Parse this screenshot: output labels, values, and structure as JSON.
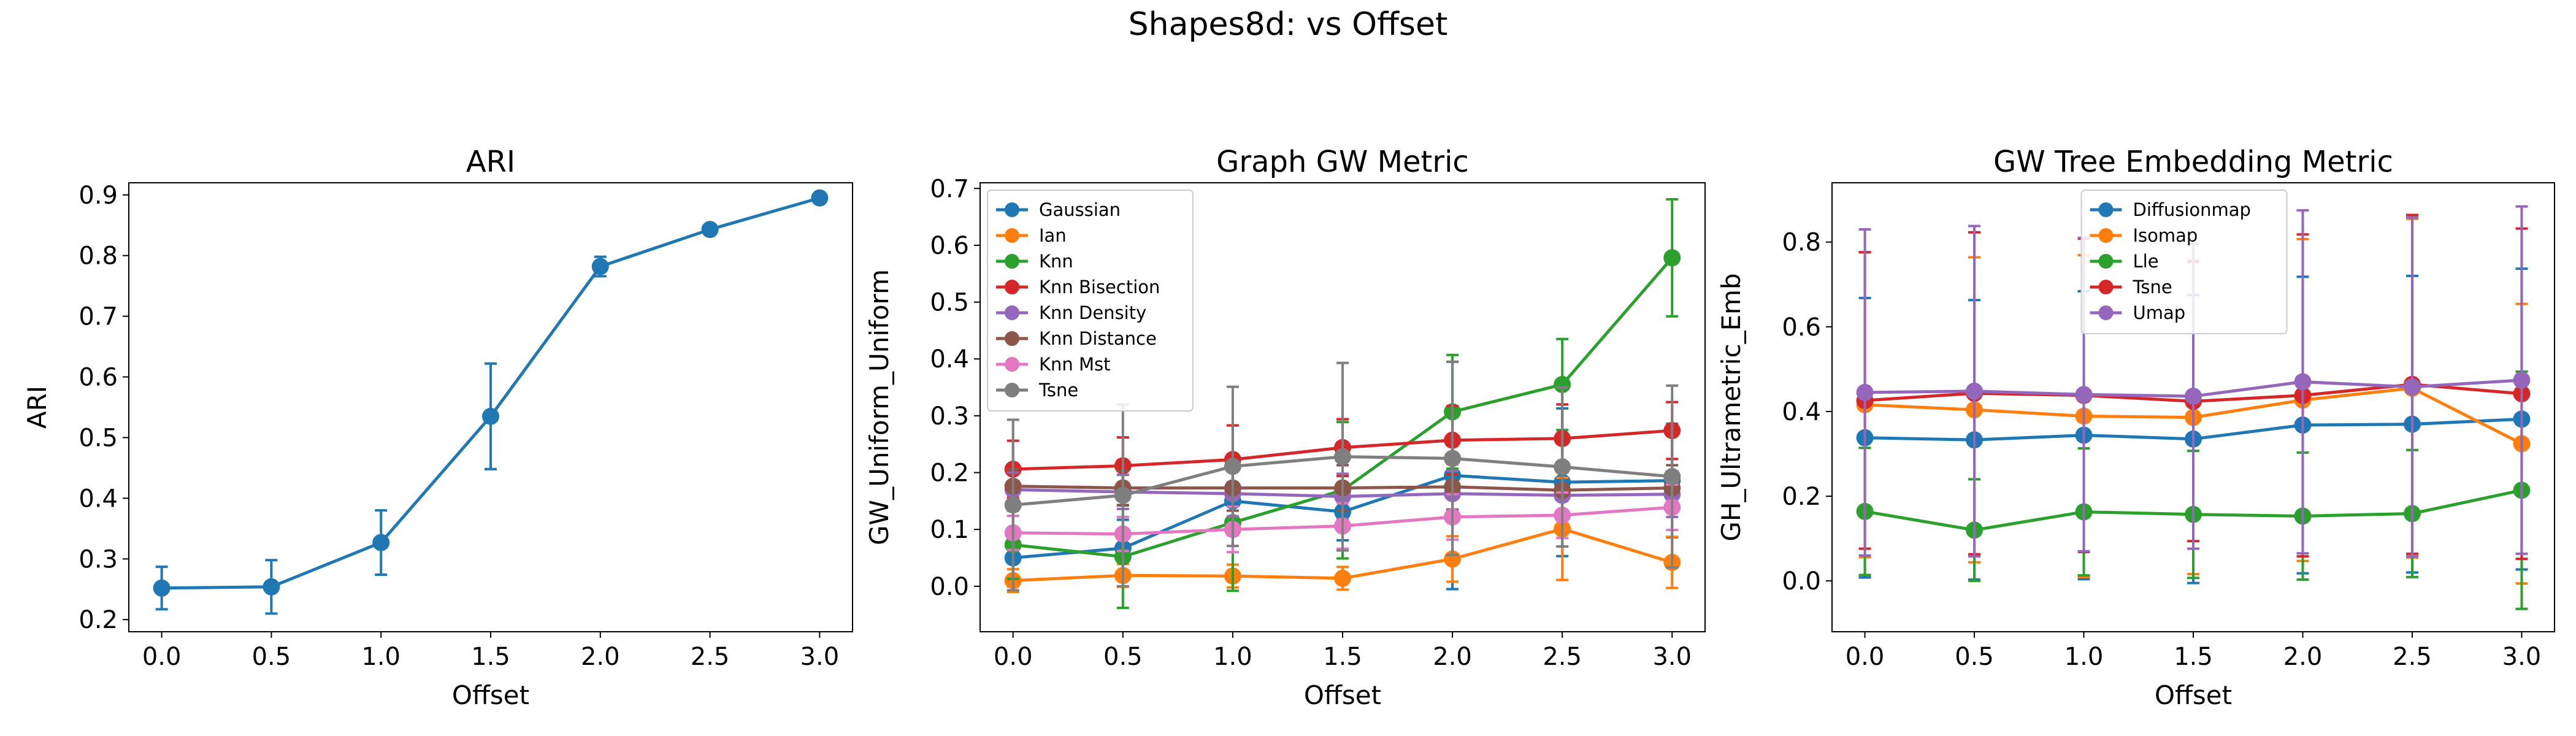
{
  "suptitle": "Shapes8d: vs Offset",
  "chart_data": [
    {
      "type": "line",
      "title": "ARI",
      "xlabel": "Offset",
      "ylabel": "ARI",
      "x": [
        0.0,
        0.5,
        1.0,
        1.5,
        2.0,
        2.5,
        3.0
      ],
      "xticks": [
        "0.0",
        "0.5",
        "1.0",
        "1.5",
        "2.0",
        "2.5",
        "3.0"
      ],
      "xlim": [
        -0.15,
        3.15
      ],
      "ylim": [
        0.18,
        0.92
      ],
      "yticks": [
        "0.2",
        "0.3",
        "0.4",
        "0.5",
        "0.6",
        "0.7",
        "0.8",
        "0.9"
      ],
      "legend": null,
      "grid": false,
      "series": [
        {
          "color": "#1f77b4",
          "values": [
            0.252,
            0.254,
            0.327,
            0.535,
            0.782,
            0.843,
            0.895
          ],
          "errors": [
            0.035,
            0.044,
            0.053,
            0.087,
            0.016,
            0.0,
            0.0
          ]
        }
      ]
    },
    {
      "type": "line",
      "title": "Graph GW Metric",
      "xlabel": "Offset",
      "ylabel": "GW_Uniform_Uniform",
      "x": [
        0.0,
        0.5,
        1.0,
        1.5,
        2.0,
        2.5,
        3.0
      ],
      "xticks": [
        "0.0",
        "0.5",
        "1.0",
        "1.5",
        "2.0",
        "2.5",
        "3.0"
      ],
      "xlim": [
        -0.15,
        3.15
      ],
      "ylim": [
        -0.08,
        0.71
      ],
      "yticks": [
        "0.0",
        "0.1",
        "0.2",
        "0.3",
        "0.4",
        "0.5",
        "0.6",
        "0.7"
      ],
      "legend": "upper left",
      "grid": false,
      "series": [
        {
          "name": "Gaussian",
          "color": "#1f77b4",
          "values": [
            0.05,
            0.067,
            0.15,
            0.131,
            0.195,
            0.183,
            0.186
          ],
          "errors": [
            0.05,
            0.05,
            0.06,
            0.05,
            0.2,
            0.13,
            0.1
          ]
        },
        {
          "name": "Ian",
          "color": "#ff7f0e",
          "values": [
            0.01,
            0.019,
            0.018,
            0.014,
            0.048,
            0.101,
            0.042
          ],
          "errors": [
            0.02,
            0.02,
            0.02,
            0.02,
            0.04,
            0.09,
            0.045
          ]
        },
        {
          "name": "Knn",
          "color": "#2ca02c",
          "values": [
            0.073,
            0.052,
            0.112,
            0.169,
            0.307,
            0.355,
            0.578
          ],
          "errors": [
            0.06,
            0.09,
            0.12,
            0.12,
            0.1,
            0.08,
            0.103
          ]
        },
        {
          "name": "Knn Bisection",
          "color": "#d62728",
          "values": [
            0.206,
            0.212,
            0.223,
            0.244,
            0.257,
            0.26,
            0.274
          ],
          "errors": [
            0.05,
            0.05,
            0.06,
            0.05,
            0.06,
            0.06,
            0.05
          ]
        },
        {
          "name": "Knn Density",
          "color": "#9467bd",
          "values": [
            0.17,
            0.166,
            0.163,
            0.158,
            0.163,
            0.16,
            0.162
          ],
          "errors": [
            0.03,
            0.03,
            0.04,
            0.04,
            0.04,
            0.04,
            0.04
          ]
        },
        {
          "name": "Knn Distance",
          "color": "#8c564b",
          "values": [
            0.176,
            0.173,
            0.173,
            0.173,
            0.175,
            0.169,
            0.173
          ],
          "errors": [
            0.03,
            0.03,
            0.04,
            0.04,
            0.04,
            0.04,
            0.04
          ]
        },
        {
          "name": "Knn Mst",
          "color": "#e377c2",
          "values": [
            0.094,
            0.092,
            0.1,
            0.106,
            0.122,
            0.125,
            0.139
          ],
          "errors": [
            0.03,
            0.03,
            0.04,
            0.04,
            0.04,
            0.04,
            0.04
          ]
        },
        {
          "name": "Tsne",
          "color": "#7f7f7f",
          "values": [
            0.143,
            0.16,
            0.211,
            0.228,
            0.225,
            0.21,
            0.193
          ],
          "errors": [
            0.15,
            0.16,
            0.14,
            0.165,
            0.17,
            0.14,
            0.16
          ]
        }
      ]
    },
    {
      "type": "line",
      "title": "GW Tree Embedding Metric",
      "xlabel": "Offset",
      "ylabel": "GH_Ultrametric_Emb",
      "x": [
        0.0,
        0.5,
        1.0,
        1.5,
        2.0,
        2.5,
        3.0
      ],
      "xticks": [
        "0.0",
        "0.5",
        "1.0",
        "1.5",
        "2.0",
        "2.5",
        "3.0"
      ],
      "xlim": [
        -0.15,
        3.15
      ],
      "ylim": [
        -0.12,
        0.94
      ],
      "yticks": [
        "0.0",
        "0.2",
        "0.4",
        "0.6",
        "0.8"
      ],
      "legend": "upper center",
      "grid": false,
      "series": [
        {
          "name": "Diffusionmap",
          "color": "#1f77b4",
          "values": [
            0.338,
            0.333,
            0.344,
            0.335,
            0.368,
            0.37,
            0.382
          ],
          "errors": [
            0.33,
            0.33,
            0.34,
            0.34,
            0.35,
            0.35,
            0.355
          ]
        },
        {
          "name": "Isomap",
          "color": "#ff7f0e",
          "values": [
            0.416,
            0.404,
            0.389,
            0.386,
            0.427,
            0.455,
            0.324
          ],
          "errors": [
            0.36,
            0.36,
            0.38,
            0.37,
            0.38,
            0.4,
            0.33
          ]
        },
        {
          "name": "Lle",
          "color": "#2ca02c",
          "values": [
            0.164,
            0.12,
            0.163,
            0.157,
            0.153,
            0.159,
            0.214
          ],
          "errors": [
            0.15,
            0.12,
            0.15,
            0.15,
            0.15,
            0.15,
            0.28
          ]
        },
        {
          "name": "Tsne",
          "color": "#d62728",
          "values": [
            0.426,
            0.443,
            0.438,
            0.424,
            0.438,
            0.464,
            0.442
          ],
          "errors": [
            0.35,
            0.38,
            0.37,
            0.33,
            0.38,
            0.4,
            0.39
          ]
        },
        {
          "name": "Umap",
          "color": "#9467bd",
          "values": [
            0.445,
            0.448,
            0.44,
            0.436,
            0.47,
            0.458,
            0.474
          ],
          "errors": [
            0.385,
            0.39,
            0.37,
            0.36,
            0.405,
            0.4,
            0.41
          ]
        }
      ]
    }
  ]
}
